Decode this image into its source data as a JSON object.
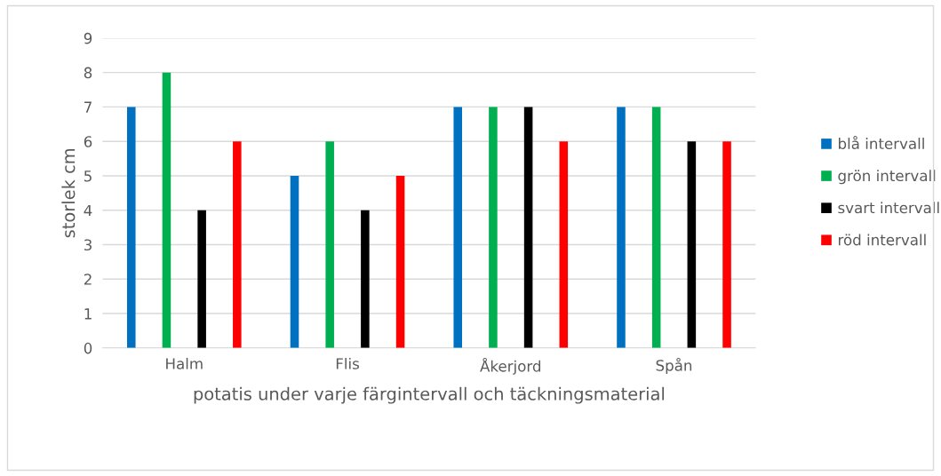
{
  "chart_data": {
    "type": "bar",
    "xlabel": "potatis under varje färgintervall och täckningsmaterial",
    "ylabel": "storlek cm",
    "categories": [
      "Halm",
      "Flis",
      "Åkerjord",
      "Spån"
    ],
    "series": [
      {
        "name": "blå intervall",
        "color": "#0070c0",
        "values": [
          7,
          5,
          7,
          7
        ]
      },
      {
        "name": "grön intervall",
        "color": "#00b050",
        "values": [
          8,
          6,
          7,
          7
        ]
      },
      {
        "name": "svart intervall",
        "color": "#000000",
        "values": [
          4,
          4,
          7,
          6
        ]
      },
      {
        "name": "röd intervall",
        "color": "#ff0000",
        "values": [
          6,
          5,
          6,
          6
        ]
      }
    ],
    "ylim": [
      0,
      9
    ],
    "yticks": [
      0,
      1,
      2,
      3,
      4,
      5,
      6,
      7,
      8,
      9
    ],
    "grid": "y",
    "legend": "right"
  }
}
